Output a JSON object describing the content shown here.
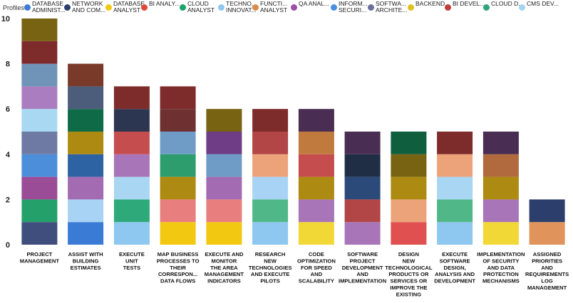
{
  "chart_data": {
    "type": "bar",
    "stacked": true,
    "legend_title": "Profiles",
    "legend_position": "top",
    "ylim": [
      0,
      10
    ],
    "yticks": [
      "0",
      "2",
      "4",
      "6",
      "8",
      "10"
    ],
    "categories": [
      "PROJECT\nMANAGEMENT",
      "ASSIST WITH\nBUILDING\nESTIMATES",
      "EXECUTE\nUNIT\nTESTS",
      "MAP BUSINESS\nPROCESSES TO\nTHEIR\nCORRESPON...\nDATA FLOWS",
      "EXECUTE AND\nMONITOR\nTHE AREA\nMANAGEMENT\nINDICATORS",
      "RESEARCH\nNEW\nTECHNOLOGIES\nAND EXECUTE\nPILOTS",
      "CODE\nOPTIMIZATION\nFOR SPEED\nAND\nSCALABILITY",
      "SOFTWARE\nPROJECT\nDEVELOPMENT\nAND\nIMPLEMENTATION",
      "DESIGN\nNEW\nTECHNOLOGICAL\nPRODUCTS OR\nSERVICES OR\nIMPROVE THE\nEXISTING",
      "EXECUTE\nSOFTWARE\nDESIGN,\nANALYSIS AND\nDEVELOPMENT",
      "IMPLEMENTATION\nOF SECURITY\nAND DATA\nPROTECTION\nMECHANISMS",
      "ASSIGNED\nPRIORITIES\nAND\nREQUIREMENTS\nLOG\nMANAGEMENT"
    ],
    "legend": [
      {
        "label": "DATABASE\nADMINIST...",
        "color": "#3a7bd5"
      },
      {
        "label": "NETWORK\nAND COM...",
        "color": "#2c3e6b"
      },
      {
        "label": "DATABASE\nANALYST",
        "color": "#f2c811"
      },
      {
        "label": "BI ANALY...",
        "color": "#e0463a"
      },
      {
        "label": "CLOUD\nANALYST",
        "color": "#1aa36a"
      },
      {
        "label": "TECHNO...\nINNOVAT...",
        "color": "#8ec8f0"
      },
      {
        "label": "FUNCTI...\nANALYST",
        "color": "#d98c4a"
      },
      {
        "label": "QA ANAL...",
        "color": "#9b4fa8"
      },
      {
        "label": "INFORM...\nSECURI...",
        "color": "#4a90e2"
      },
      {
        "label": "SOFTWA...\nARCHITE...",
        "color": "#6c6f99"
      },
      {
        "label": "BACKEND...",
        "color": "#e0c020"
      },
      {
        "label": "BI DEVEL...",
        "color": "#c23c3c"
      },
      {
        "label": "CLOUD D...",
        "color": "#2fa37a"
      },
      {
        "label": "CMS DEV...",
        "color": "#a8d3f0"
      }
    ],
    "stacks": [
      [
        "#3f4e7c",
        "#24a06a",
        "#9a4c96",
        "#4d8edb",
        "#6e7aa3",
        "#a9d9f2",
        "#a97dbf",
        "#6f94b8",
        "#7e2b2b",
        "#776312"
      ],
      [
        "#3a7bd5",
        "#a9d3f5",
        "#a26bb2",
        "#2e63a3",
        "#ad8a11",
        "#0f6a48",
        "#4c5d7c",
        "#7a3a2a"
      ],
      [
        "#8ec7ef",
        "#2eaa7a",
        "#a9d6f2",
        "#a875b8",
        "#c64d4d",
        "#2c3650",
        "#7e2b2b"
      ],
      [
        "#f2c811",
        "#e87e7e",
        "#ad8a11",
        "#2e9d6d",
        "#6e9cc7",
        "#6e3030",
        "#7e2b2b"
      ],
      [
        "#f2c811",
        "#e87e7e",
        "#a26bb2",
        "#6e9cc7",
        "#6e3d86",
        "#776312"
      ],
      [
        "#8ec7ef",
        "#4fb788",
        "#a9d3f5",
        "#eda37a",
        "#b24545",
        "#7e2b2b"
      ],
      [
        "#f2d836",
        "#a875b8",
        "#ad8a11",
        "#c64d4d",
        "#c07a3e",
        "#4a2d52"
      ],
      [
        "#a875b8",
        "#b24545",
        "#2b4a7a",
        "#1f2e45",
        "#4a2d52"
      ],
      [
        "#e05050",
        "#eda37a",
        "#ad8a11",
        "#776312",
        "#0f5e3e"
      ],
      [
        "#8ec7ef",
        "#4fb788",
        "#a9d6f2",
        "#eda37a",
        "#7e2b2b"
      ],
      [
        "#f2d836",
        "#a875b8",
        "#ad8a11",
        "#b06a3e",
        "#4a2d52"
      ],
      [
        "#e0935a",
        "#2c3e6b"
      ]
    ]
  }
}
